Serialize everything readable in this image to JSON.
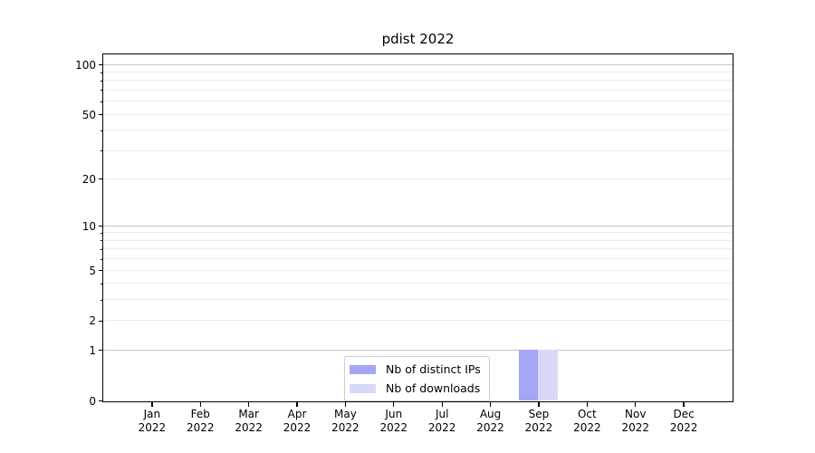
{
  "chart_data": {
    "type": "bar",
    "title": "pdist 2022",
    "xlabel": "",
    "ylabel": "",
    "categories": [
      "Jan",
      "Feb",
      "Mar",
      "Apr",
      "May",
      "Jun",
      "Jul",
      "Aug",
      "Sep",
      "Oct",
      "Nov",
      "Dec"
    ],
    "category_year": "2022",
    "series": [
      {
        "name": "Nb of distinct IPs",
        "color": "#a5a5f5",
        "values": [
          0,
          0,
          0,
          0,
          0,
          0,
          0,
          0,
          1,
          0,
          0,
          0
        ]
      },
      {
        "name": "Nb of downloads",
        "color": "#d8d8f9",
        "values": [
          0,
          0,
          0,
          0,
          0,
          0,
          0,
          0,
          1,
          0,
          0,
          0
        ]
      }
    ],
    "yaxis": {
      "scale": "log1p",
      "ticks": [
        0,
        1,
        2,
        5,
        10,
        20,
        50,
        100
      ],
      "major_gridline_values": [
        1,
        10,
        100
      ],
      "minor_gridline_values": [
        2,
        3,
        4,
        5,
        6,
        7,
        8,
        9,
        20,
        30,
        40,
        50,
        60,
        70,
        80,
        90
      ],
      "ylim": [
        0,
        115
      ]
    },
    "grid": "horizontal",
    "legend": {
      "position": "bottom-center",
      "entries": [
        "Nb of distinct IPs",
        "Nb of downloads"
      ]
    },
    "colors": {
      "spine": "#000000",
      "major_grid": "#c6c6c6",
      "minor_grid": "#ebebeb",
      "background": "#ffffff"
    }
  }
}
